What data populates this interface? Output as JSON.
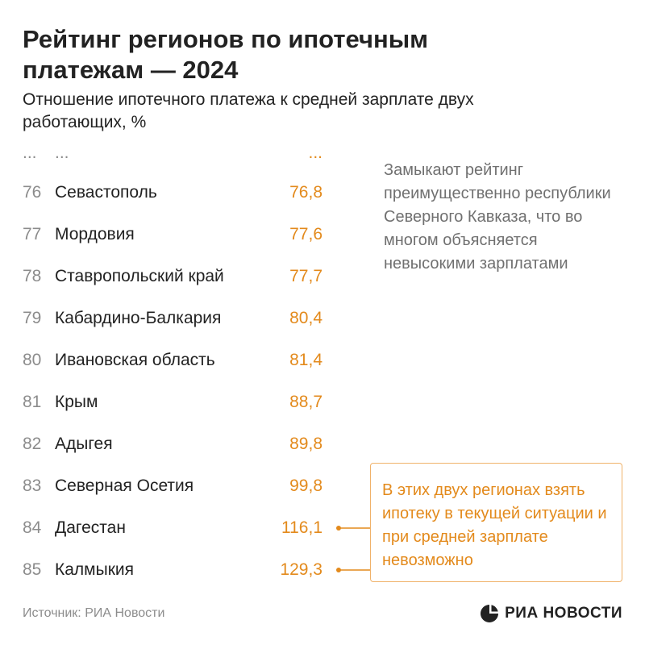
{
  "header": {
    "title": "Рейтинг регионов по ипотечным платежам — 2024",
    "subtitle": "Отношение ипотечного платежа к средней зарплате двух работающих, %"
  },
  "ellipsis": {
    "rank": "...",
    "region": "...",
    "value": "..."
  },
  "chart_data": {
    "type": "table",
    "title": "Рейтинг регионов по ипотечным платежам — 2024",
    "subtitle": "Отношение ипотечного платежа к средней зарплате двух работающих, %",
    "columns": [
      "rank",
      "region",
      "value"
    ],
    "rows": [
      {
        "rank": "76",
        "region": "Севастополь",
        "value": "76,8"
      },
      {
        "rank": "77",
        "region": "Мордовия",
        "value": "77,6"
      },
      {
        "rank": "78",
        "region": "Ставропольский край",
        "value": "77,7"
      },
      {
        "rank": "79",
        "region": "Кабардино-Балкария",
        "value": "80,4"
      },
      {
        "rank": "80",
        "region": "Ивановская область",
        "value": "81,4"
      },
      {
        "rank": "81",
        "region": "Крым",
        "value": "88,7"
      },
      {
        "rank": "82",
        "region": "Адыгея",
        "value": "89,8"
      },
      {
        "rank": "83",
        "region": "Северная Осетия",
        "value": "99,8"
      },
      {
        "rank": "84",
        "region": "Дагестан",
        "value": "116,1"
      },
      {
        "rank": "85",
        "region": "Калмыкия",
        "value": "129,3"
      }
    ]
  },
  "annotations": {
    "note": "Замыкают рейтинг преимущественно республики Северного Кавказа, что во многом объясняется невысокими зарплатами",
    "callout": "В этих двух регионах взять ипотеку в текущей ситуации и при средней зарплате невозможно"
  },
  "footer": {
    "source": "Источник: РИА Новости",
    "logo_text": "РИА НОВОСТИ",
    "logo_icon": "ria-logo-icon"
  },
  "colors": {
    "accent": "#e38a1c",
    "callout_border": "#f0b26a",
    "muted": "#8c8c8c",
    "text": "#222222"
  }
}
